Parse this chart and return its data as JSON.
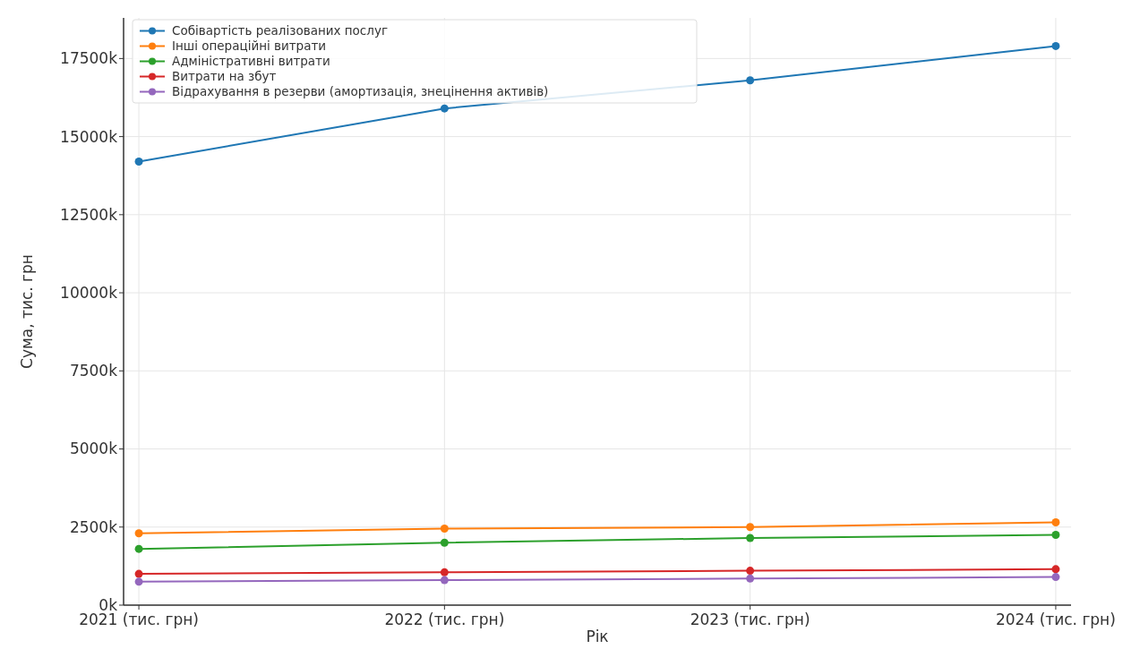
{
  "chart_data": {
    "type": "line",
    "xlabel": "Рік",
    "ylabel": "Сума, тис. грн",
    "categories": [
      "2021 (тис. грн)",
      "2022 (тис. грн)",
      "2023 (тис. грн)",
      "2024 (тис. грн)"
    ],
    "series": [
      {
        "name": "Собівартість реалізованих послуг",
        "color": "#1f77b4",
        "values": [
          14200,
          15900,
          16800,
          17900
        ]
      },
      {
        "name": "Інші операційні витрати",
        "color": "#ff7f0e",
        "values": [
          2300,
          2450,
          2500,
          2650
        ]
      },
      {
        "name": "Адміністративні витрати",
        "color": "#2ca02c",
        "values": [
          1800,
          2000,
          2150,
          2250
        ]
      },
      {
        "name": "Витрати на збут",
        "color": "#d62728",
        "values": [
          1000,
          1050,
          1100,
          1150
        ]
      },
      {
        "name": "Відрахування в резерви (амортизація, знецінення активів)",
        "color": "#9467bd",
        "values": [
          750,
          800,
          850,
          900
        ]
      }
    ],
    "ylim": [
      0,
      18800
    ],
    "yticks": [
      {
        "value": 0,
        "label": "0k"
      },
      {
        "value": 2500,
        "label": "2500k"
      },
      {
        "value": 5000,
        "label": "5000k"
      },
      {
        "value": 7500,
        "label": "7500k"
      },
      {
        "value": 10000,
        "label": "10000k"
      },
      {
        "value": 12500,
        "label": "12500k"
      },
      {
        "value": 15000,
        "label": "15000k"
      },
      {
        "value": 17500,
        "label": "17500k"
      }
    ],
    "grid": true,
    "legend": "top left",
    "marker": "circle",
    "line_style": "solid"
  }
}
